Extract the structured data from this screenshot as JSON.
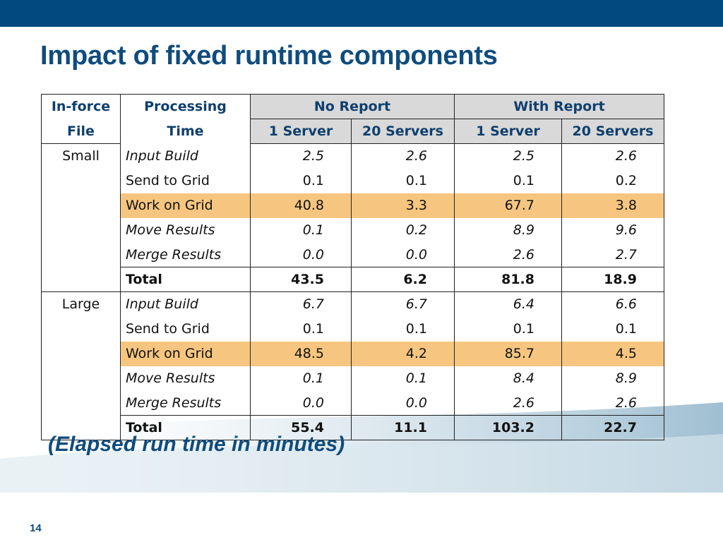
{
  "slide": {
    "title": "Impact of fixed runtime components",
    "caption": "(Elapsed run time in minutes)",
    "page_number": "14"
  },
  "colors": {
    "top_bar": "#004a80",
    "title": "#0f4c7d",
    "header_fill": "#d9d9d9",
    "highlight_row": "#f6c680"
  },
  "table": {
    "headers": {
      "inforce_line1": "In-force",
      "inforce_line2": "File",
      "processing_line1": "Processing",
      "processing_line2": "Time",
      "no_report": "No Report",
      "with_report": "With Report",
      "server_1": "1 Server",
      "servers_20": "20 Servers"
    },
    "groups": [
      {
        "file": "Small",
        "rows": [
          {
            "label": "Input Build",
            "values": [
              "2.5",
              "2.6",
              "2.5",
              "2.6"
            ]
          },
          {
            "label": "Send to Grid",
            "values": [
              "0.1",
              "0.1",
              "0.1",
              "0.2"
            ]
          },
          {
            "label": "Work on Grid",
            "values": [
              "40.8",
              "3.3",
              "67.7",
              "3.8"
            ]
          },
          {
            "label": "Move Results",
            "values": [
              "0.1",
              "0.2",
              "8.9",
              "9.6"
            ]
          },
          {
            "label": "Merge Results",
            "values": [
              "0.0",
              "0.0",
              "2.6",
              "2.7"
            ]
          },
          {
            "label": "Total",
            "values": [
              "43.5",
              "6.2",
              "81.8",
              "18.9"
            ]
          }
        ]
      },
      {
        "file": "Large",
        "rows": [
          {
            "label": "Input Build",
            "values": [
              "6.7",
              "6.7",
              "6.4",
              "6.6"
            ]
          },
          {
            "label": "Send to Grid",
            "values": [
              "0.1",
              "0.1",
              "0.1",
              "0.1"
            ]
          },
          {
            "label": "Work on Grid",
            "values": [
              "48.5",
              "4.2",
              "85.7",
              "4.5"
            ]
          },
          {
            "label": "Move Results",
            "values": [
              "0.1",
              "0.1",
              "8.4",
              "8.9"
            ]
          },
          {
            "label": "Merge Results",
            "values": [
              "0.0",
              "0.0",
              "2.6",
              "2.6"
            ]
          },
          {
            "label": "Total",
            "values": [
              "55.4",
              "11.1",
              "103.2",
              "22.7"
            ]
          }
        ]
      }
    ]
  }
}
